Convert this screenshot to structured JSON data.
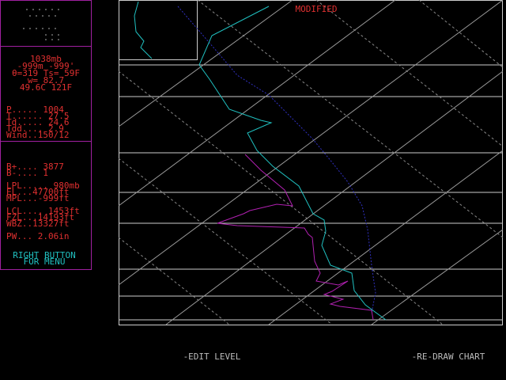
{
  "status": "MODIFIED",
  "level_box": {
    "lines": [
      "1038mb",
      "-999m -999'",
      "θ=319 Ts= 59F",
      "w= 82.7",
      "49.6C 121F"
    ]
  },
  "surface_box": {
    "lines": [
      "P..... 1004",
      "T...... 27.5",
      "Td..... 24.6",
      "Tdd.... 2.9",
      "Wind..150/12"
    ]
  },
  "indices_box": {
    "lines": [
      "B+.... 3877",
      "B-.... 1",
      "LPL..... 980mb",
      "EL...47700ft",
      "MPL...-999ft",
      "LCL.... 1453ft",
      "FZL...14193ft",
      "WBZ..13327ft",
      "PW... 2.06in"
    ],
    "hint": [
      "RIGHT BUTTON",
      "FOR MENU"
    ]
  },
  "buttons": [
    "-EDIT LEVEL",
    "-RE-DRAW CHART"
  ]
}
